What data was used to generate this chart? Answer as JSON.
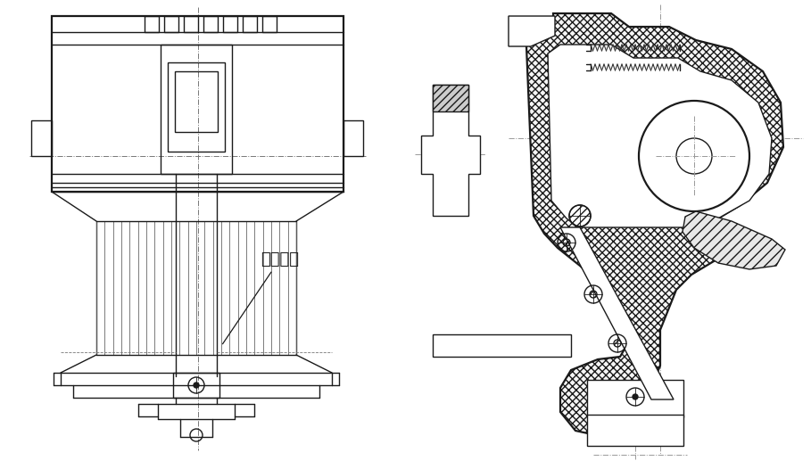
{
  "bg_color": "#ffffff",
  "line_color": "#1a1a1a",
  "hatch_color": "#333333",
  "label_text": "压缩弹簧",
  "label_fontsize": 13,
  "fig_width": 9.09,
  "fig_height": 5.17,
  "dpi": 100
}
